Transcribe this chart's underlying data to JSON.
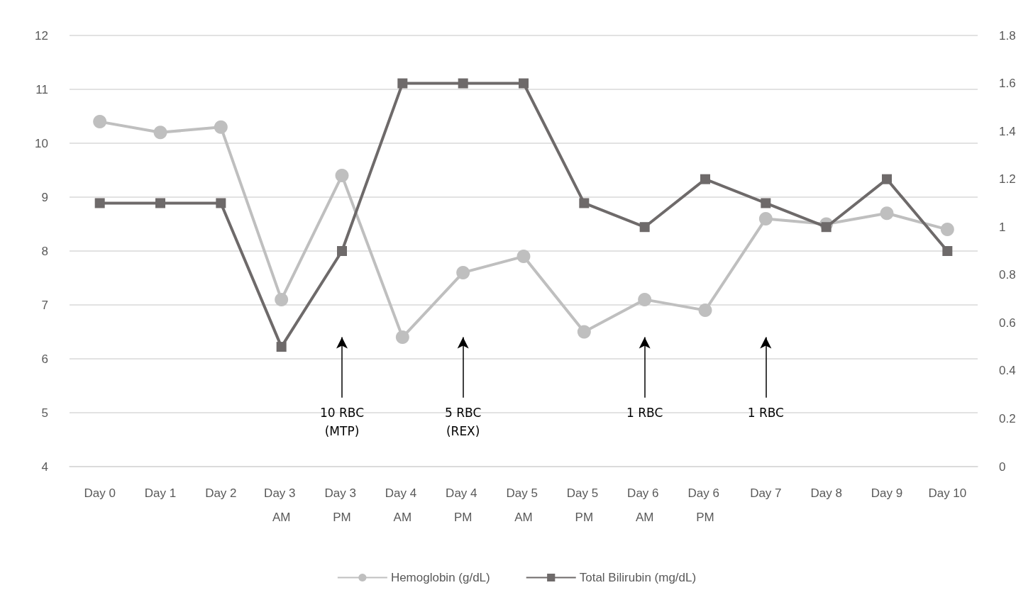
{
  "chart_data": {
    "type": "line",
    "categories": [
      "Day 0",
      "Day 1",
      "Day 2",
      "Day 3 AM",
      "Day 3 PM",
      "Day 4 AM",
      "Day 4 PM",
      "Day 5 AM",
      "Day 5 PM",
      "Day 6 AM",
      "Day 6 PM",
      "Day 7",
      "Day 8",
      "Day 9",
      "Day 10"
    ],
    "series": [
      {
        "name": "Hemoglobin (g/dL)",
        "color": "#bfbfbf",
        "marker": "circle",
        "values": [
          10.4,
          10.2,
          10.3,
          7.1,
          9.4,
          6.4,
          7.6,
          7.9,
          6.5,
          7.1,
          6.9,
          8.6,
          8.5,
          8.7,
          8.4
        ]
      },
      {
        "name": "Total Bilirubin (mg/dL)",
        "color": "#6e6a6a",
        "marker": "square",
        "axis": "y2",
        "values": [
          1.1,
          1.1,
          1.1,
          0.5,
          0.9,
          1.6,
          1.6,
          1.6,
          1.1,
          1.0,
          1.2,
          1.1,
          1.0,
          1.2,
          0.9
        ]
      }
    ],
    "ylim": [
      4,
      12
    ],
    "yticks": [
      4,
      5,
      6,
      7,
      8,
      9,
      10,
      11,
      12
    ],
    "y2lim": [
      0,
      1.8
    ],
    "y2ticks": [
      0,
      0.2,
      0.4,
      0.6,
      0.8,
      1,
      1.2,
      1.4,
      1.6,
      1.8
    ],
    "annotations": [
      "10 RBC\n(MTP)",
      "5 RBC\n(REX)",
      "1 RBC",
      "1 RBC"
    ],
    "grid": "y",
    "legend": "bottom",
    "line_style": "solid"
  }
}
